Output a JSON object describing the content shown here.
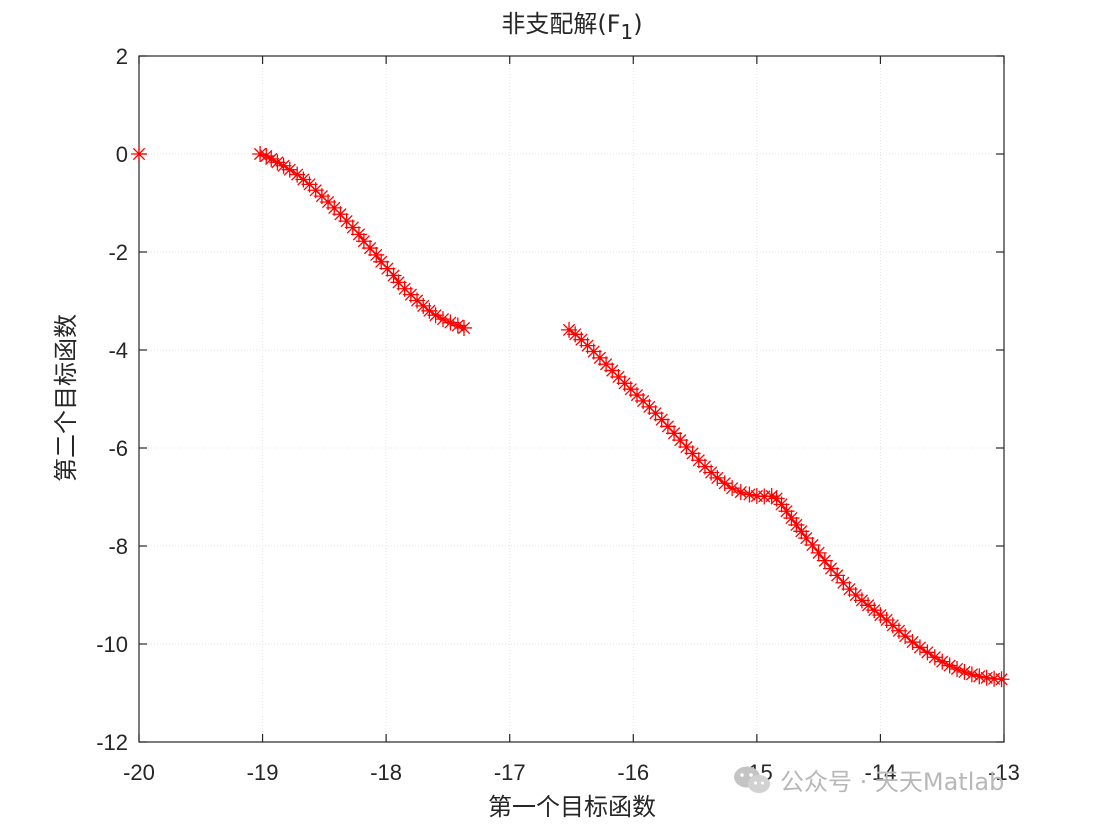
{
  "chart_data": {
    "type": "scatter",
    "title_main": "非支配解(F",
    "title_sub": "1",
    "title_end": ")",
    "xlabel": "第一个目标函数",
    "ylabel": "第二个目标函数",
    "xlim": [
      -20,
      -13
    ],
    "ylim": [
      -12,
      2
    ],
    "xticks": [
      "-20",
      "-19",
      "-18",
      "-17",
      "-16",
      "-15",
      "-14",
      "-13"
    ],
    "yticks": [
      "2",
      "0",
      "-2",
      "-4",
      "-6",
      "-8",
      "-10",
      "-12"
    ],
    "grid": true,
    "marker": "asterisk",
    "color": "#ff0000",
    "segments": [
      [
        [
          -20.0,
          0.0
        ]
      ],
      [
        [
          -19.02,
          0.0
        ],
        [
          -18.97,
          -0.04
        ],
        [
          -18.93,
          -0.1
        ],
        [
          -18.88,
          -0.17
        ],
        [
          -18.83,
          -0.24
        ],
        [
          -18.78,
          -0.32
        ],
        [
          -18.72,
          -0.42
        ],
        [
          -18.67,
          -0.52
        ],
        [
          -18.62,
          -0.62
        ],
        [
          -18.57,
          -0.74
        ],
        [
          -18.52,
          -0.86
        ],
        [
          -18.47,
          -0.98
        ],
        [
          -18.42,
          -1.1
        ],
        [
          -18.37,
          -1.23
        ],
        [
          -18.32,
          -1.37
        ],
        [
          -18.27,
          -1.5
        ],
        [
          -18.22,
          -1.64
        ],
        [
          -18.18,
          -1.78
        ],
        [
          -18.13,
          -1.92
        ],
        [
          -18.08,
          -2.06
        ],
        [
          -18.04,
          -2.2
        ],
        [
          -17.99,
          -2.34
        ],
        [
          -17.94,
          -2.48
        ],
        [
          -17.9,
          -2.62
        ],
        [
          -17.85,
          -2.75
        ],
        [
          -17.8,
          -2.87
        ],
        [
          -17.75,
          -2.99
        ],
        [
          -17.7,
          -3.1
        ],
        [
          -17.65,
          -3.2
        ],
        [
          -17.6,
          -3.29
        ],
        [
          -17.54,
          -3.37
        ],
        [
          -17.48,
          -3.44
        ],
        [
          -17.42,
          -3.5
        ],
        [
          -17.37,
          -3.55
        ]
      ],
      [
        [
          -16.52,
          -3.59
        ],
        [
          -16.47,
          -3.68
        ],
        [
          -16.42,
          -3.79
        ],
        [
          -16.37,
          -3.91
        ],
        [
          -16.32,
          -4.03
        ],
        [
          -16.27,
          -4.16
        ],
        [
          -16.22,
          -4.29
        ],
        [
          -16.17,
          -4.42
        ],
        [
          -16.12,
          -4.55
        ],
        [
          -16.07,
          -4.68
        ],
        [
          -16.02,
          -4.8
        ],
        [
          -15.97,
          -4.92
        ],
        [
          -15.92,
          -5.04
        ],
        [
          -15.87,
          -5.16
        ],
        [
          -15.82,
          -5.29
        ],
        [
          -15.77,
          -5.42
        ],
        [
          -15.72,
          -5.56
        ],
        [
          -15.67,
          -5.7
        ],
        [
          -15.62,
          -5.84
        ],
        [
          -15.57,
          -5.98
        ],
        [
          -15.52,
          -6.11
        ],
        [
          -15.47,
          -6.25
        ],
        [
          -15.42,
          -6.38
        ],
        [
          -15.37,
          -6.5
        ],
        [
          -15.32,
          -6.61
        ],
        [
          -15.26,
          -6.72
        ],
        [
          -15.2,
          -6.82
        ],
        [
          -15.13,
          -6.9
        ],
        [
          -15.06,
          -6.95
        ],
        [
          -15.0,
          -6.98
        ],
        [
          -14.94,
          -6.99
        ],
        [
          -14.88,
          -6.98
        ],
        [
          -14.84,
          -7.03
        ],
        [
          -14.8,
          -7.15
        ],
        [
          -14.76,
          -7.29
        ],
        [
          -14.72,
          -7.43
        ],
        [
          -14.68,
          -7.57
        ],
        [
          -14.64,
          -7.7
        ],
        [
          -14.6,
          -7.84
        ],
        [
          -14.55,
          -7.98
        ],
        [
          -14.5,
          -8.14
        ],
        [
          -14.45,
          -8.3
        ],
        [
          -14.4,
          -8.46
        ],
        [
          -14.35,
          -8.6
        ],
        [
          -14.3,
          -8.75
        ],
        [
          -14.25,
          -8.88
        ],
        [
          -14.2,
          -9.0
        ],
        [
          -14.15,
          -9.11
        ],
        [
          -14.1,
          -9.21
        ],
        [
          -14.05,
          -9.31
        ],
        [
          -14.0,
          -9.41
        ],
        [
          -13.95,
          -9.51
        ],
        [
          -13.9,
          -9.62
        ],
        [
          -13.85,
          -9.73
        ],
        [
          -13.8,
          -9.84
        ],
        [
          -13.74,
          -9.96
        ],
        [
          -13.68,
          -10.07
        ],
        [
          -13.62,
          -10.17
        ],
        [
          -13.56,
          -10.27
        ],
        [
          -13.5,
          -10.36
        ],
        [
          -13.44,
          -10.44
        ],
        [
          -13.38,
          -10.51
        ],
        [
          -13.32,
          -10.57
        ],
        [
          -13.26,
          -10.62
        ],
        [
          -13.2,
          -10.66
        ],
        [
          -13.14,
          -10.69
        ],
        [
          -13.08,
          -10.71
        ],
        [
          -13.02,
          -10.72
        ]
      ]
    ]
  },
  "watermark": {
    "text": "公众号 · 天天Matlab"
  }
}
